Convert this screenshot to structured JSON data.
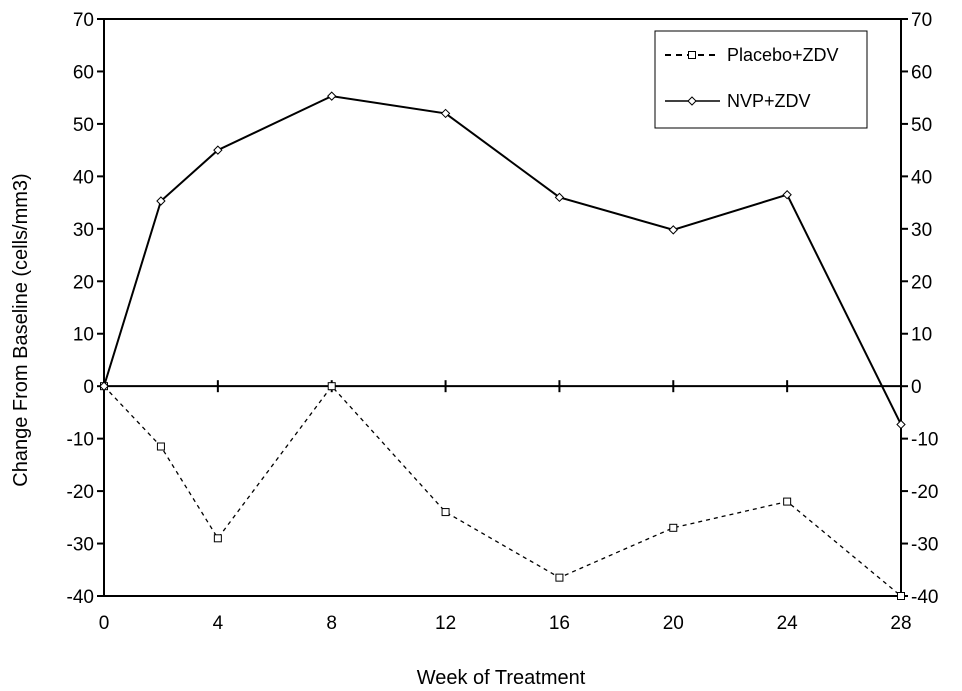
{
  "chart_data": {
    "type": "line",
    "title": "",
    "xlabel": "Week of Treatment",
    "ylabel": "Change From Baseline (cells/mm3)",
    "xlim": [
      0,
      28
    ],
    "ylim": [
      -40,
      70
    ],
    "x_ticks": [
      0,
      4,
      8,
      12,
      16,
      20,
      24,
      28
    ],
    "x_tick_labels": [
      "0",
      "4",
      "8",
      "12",
      "16",
      "20",
      "24",
      "28"
    ],
    "y_ticks": [
      -40,
      -30,
      -20,
      -10,
      0,
      10,
      20,
      30,
      40,
      50,
      60,
      70
    ],
    "y_tick_labels": [
      "-40",
      "-30",
      "-20",
      "-10",
      "0",
      "10",
      "20",
      "30",
      "40",
      "50",
      "60",
      "70"
    ],
    "right_axis_mirror": true,
    "grid": false,
    "legend_position": "top-right",
    "series": [
      {
        "name": "Placebo+ZDV",
        "style": "dashed",
        "marker": "square",
        "color": "#000000",
        "x": [
          0,
          2,
          4,
          8,
          12,
          16,
          20,
          24,
          28
        ],
        "values": [
          0,
          -11.5,
          -29,
          0,
          -24,
          -36.5,
          -27,
          -22,
          -40
        ]
      },
      {
        "name": "NVP+ZDV",
        "style": "solid",
        "marker": "diamond",
        "color": "#000000",
        "x": [
          0,
          2,
          4,
          8,
          12,
          16,
          20,
          24,
          28
        ],
        "values": [
          0,
          35.3,
          45,
          55.3,
          52,
          36,
          29.8,
          36.5,
          -7.3
        ]
      }
    ]
  }
}
